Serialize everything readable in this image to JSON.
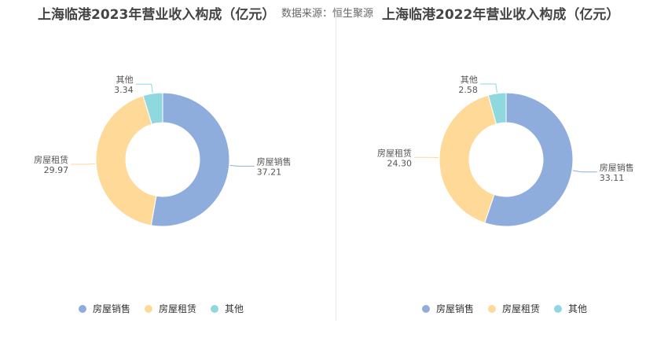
{
  "source": "数据来源：恒生聚源",
  "chart_data": [
    {
      "type": "pie",
      "variant": "donut",
      "title": "上海临港2023年营业收入构成（亿元）",
      "categories": [
        "房屋销售",
        "房屋租赁",
        "其他"
      ],
      "values": [
        37.21,
        29.97,
        3.34
      ],
      "value_labels": [
        "37.21",
        "29.97",
        "3.34"
      ],
      "colors": [
        "#8FADDC",
        "#FFD997",
        "#8ED8DE"
      ],
      "legend_position": "bottom"
    },
    {
      "type": "pie",
      "variant": "donut",
      "title": "上海临港2022年营业收入构成（亿元）",
      "categories": [
        "房屋销售",
        "房屋租赁",
        "其他"
      ],
      "values": [
        33.11,
        24.3,
        2.58
      ],
      "value_labels": [
        "33.11",
        "24.30",
        "2.58"
      ],
      "colors": [
        "#8FADDC",
        "#FFD997",
        "#8ED8DE"
      ],
      "legend_position": "bottom"
    }
  ]
}
